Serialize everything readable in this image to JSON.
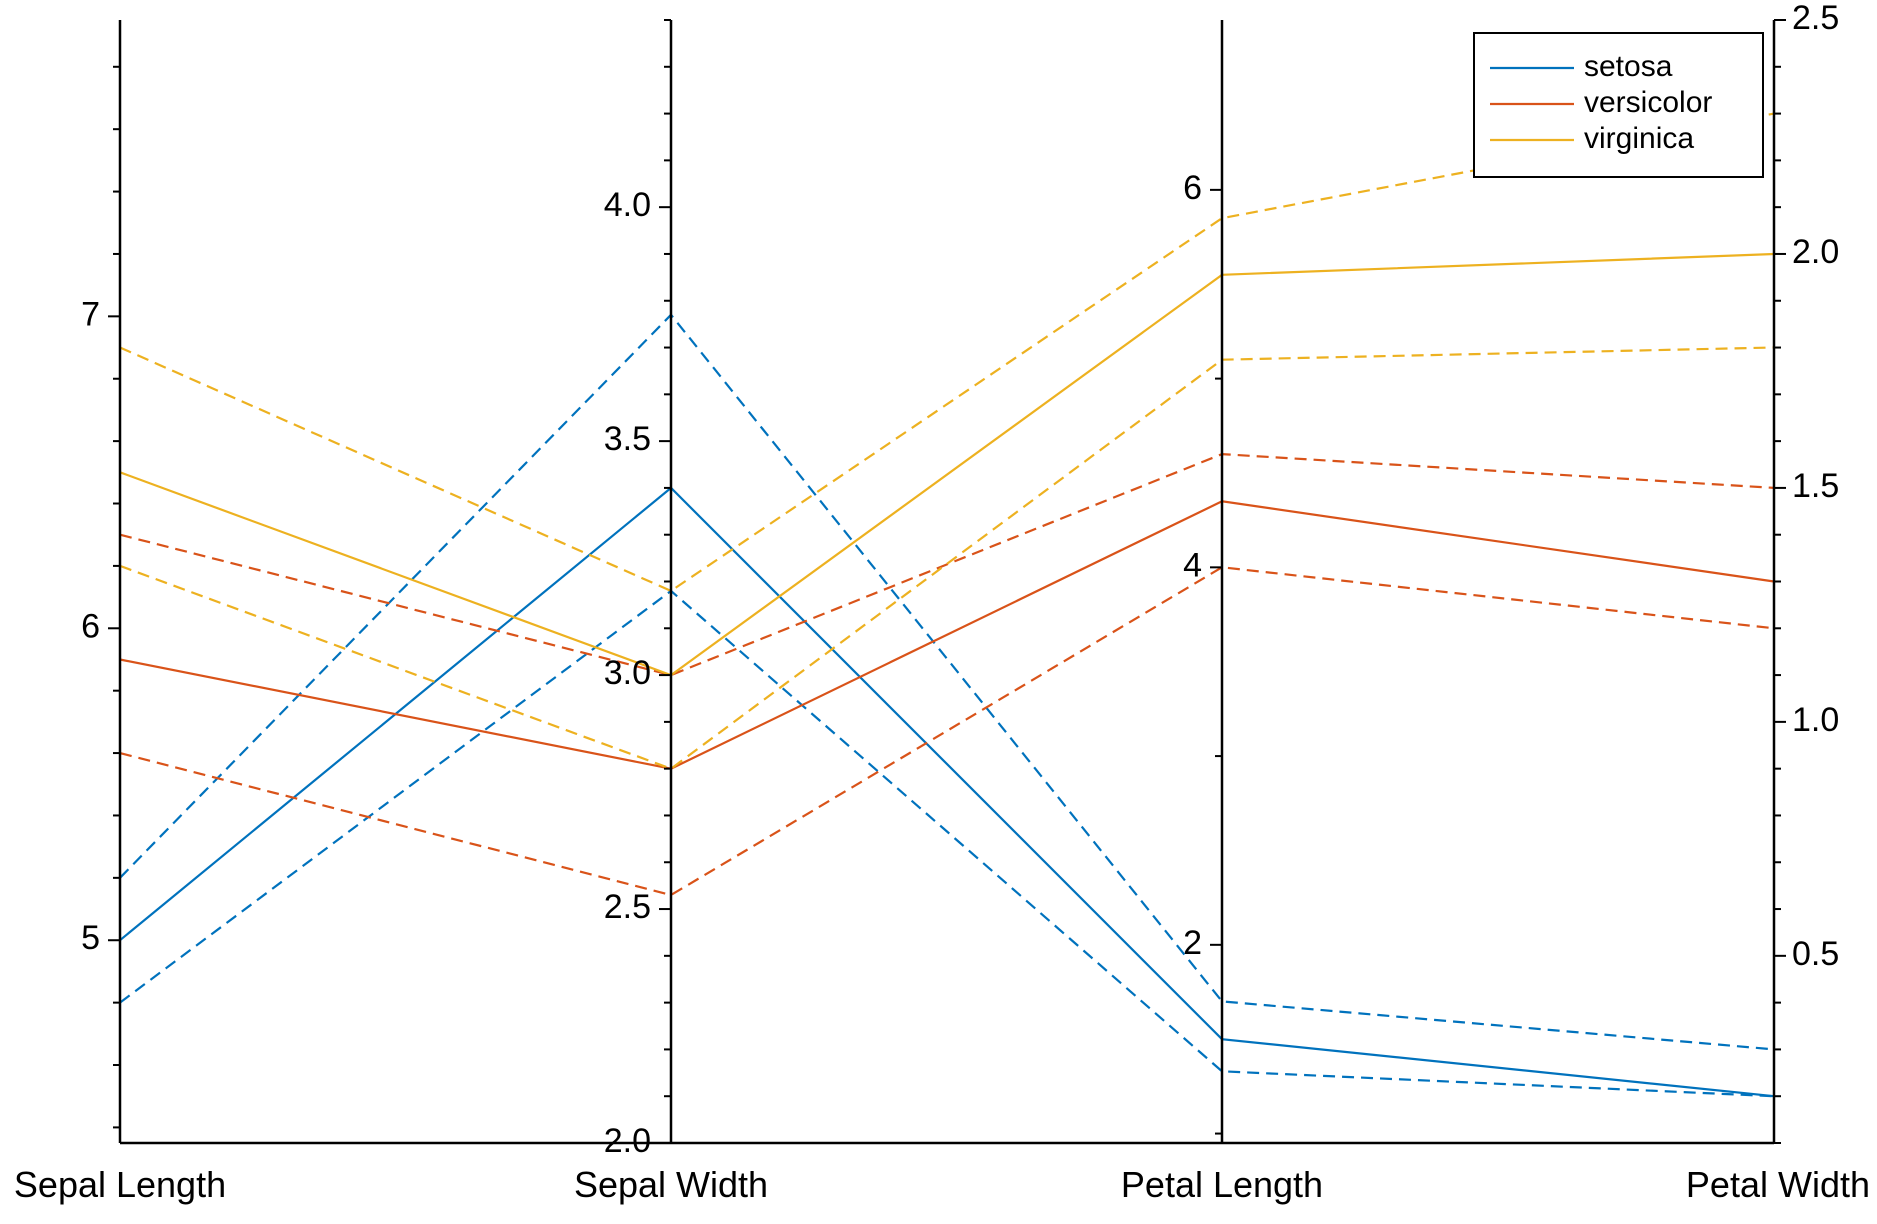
{
  "chart_data": {
    "type": "parallel_coordinates",
    "title": "",
    "axes": [
      {
        "name": "Sepal Length",
        "range": [
          4.35,
          7.95
        ],
        "ticks": [
          5,
          6,
          7
        ],
        "tick_labels": [
          "5",
          "6",
          "7"
        ],
        "minor_step": 0.2,
        "label_side": "left"
      },
      {
        "name": "Sepal Width",
        "range": [
          2.0,
          4.4
        ],
        "ticks": [
          2.0,
          2.5,
          3.0,
          3.5,
          4.0
        ],
        "tick_labels": [
          "2.0",
          "2.5",
          "3.0",
          "3.5",
          "4.0"
        ],
        "minor_step": 0.1,
        "label_side": "left"
      },
      {
        "name": "Petal Length",
        "range": [
          0.95,
          6.9
        ],
        "ticks": [
          2,
          4,
          6
        ],
        "tick_labels": [
          "2",
          "4",
          "6"
        ],
        "minor_step": 1,
        "label_side": "left"
      },
      {
        "name": "Petal Width",
        "range": [
          0.1,
          2.5
        ],
        "ticks": [
          0.5,
          1.0,
          1.5,
          2.0,
          2.5
        ],
        "tick_labels": [
          "0.5",
          "1.0",
          "1.5",
          "2.0",
          "2.5"
        ],
        "minor_step": 0.1,
        "label_side": "right"
      }
    ],
    "series": [
      {
        "name": "setosa",
        "color": "#0072BD",
        "lines": [
          {
            "style": "solid",
            "values": [
              5.0,
              3.4,
              1.5,
              0.2
            ]
          },
          {
            "style": "dashed",
            "values": [
              5.2,
              3.77,
              1.7,
              0.3
            ]
          },
          {
            "style": "dashed",
            "values": [
              4.8,
              3.18,
              1.33,
              0.2
            ]
          }
        ]
      },
      {
        "name": "versicolor",
        "color": "#D95319",
        "lines": [
          {
            "style": "solid",
            "values": [
              5.9,
              2.8,
              4.35,
              1.3
            ]
          },
          {
            "style": "dashed",
            "values": [
              6.3,
              3.0,
              4.6,
              1.5
            ]
          },
          {
            "style": "dashed",
            "values": [
              5.6,
              2.53,
              4.0,
              1.2
            ]
          }
        ]
      },
      {
        "name": "virginica",
        "color": "#EDB120",
        "lines": [
          {
            "style": "solid",
            "values": [
              6.5,
              3.0,
              5.55,
              2.0
            ]
          },
          {
            "style": "dashed",
            "values": [
              6.9,
              3.18,
              5.85,
              2.3
            ]
          },
          {
            "style": "dashed",
            "values": [
              6.2,
              2.8,
              5.1,
              1.8
            ]
          }
        ]
      }
    ],
    "legend": {
      "placement": "top-right",
      "entries": [
        "setosa",
        "versicolor",
        "virginica"
      ]
    },
    "grid": false
  }
}
